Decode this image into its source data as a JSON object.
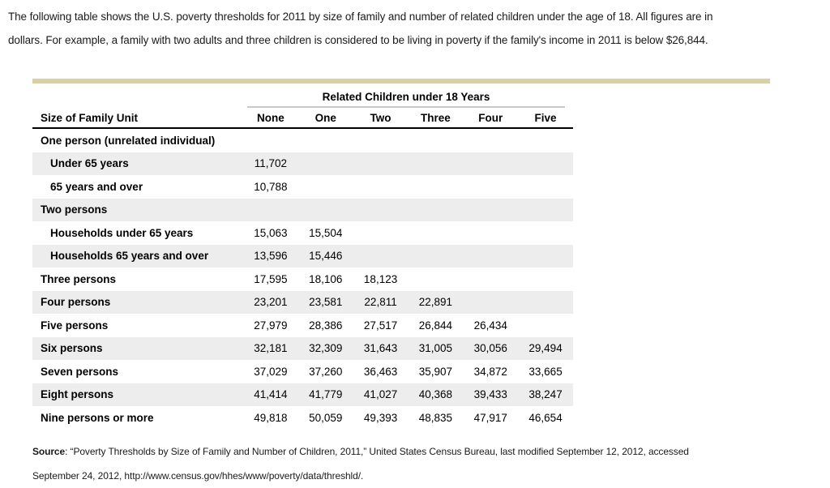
{
  "intro": {
    "line1": "The following table shows the U.S. poverty thresholds for 2011 by size of family and number of related children under the age of 18. All figures are in",
    "line2": "dollars. For example, a family with two adults and three children is considered to be living in poverty if the family's income in 2011 is below $26,844."
  },
  "table": {
    "span_header": "Related Children under 18 Years",
    "row_header": "Size of Family Unit",
    "columns": [
      "None",
      "One",
      "Two",
      "Three",
      "Four",
      "Five"
    ],
    "rows": [
      {
        "label": "One person (unrelated individual)",
        "indent": false,
        "values": [
          "",
          "",
          "",
          "",
          "",
          ""
        ]
      },
      {
        "label": "Under 65 years",
        "indent": true,
        "values": [
          "11,702",
          "",
          "",
          "",
          "",
          ""
        ]
      },
      {
        "label": "65 years and over",
        "indent": true,
        "values": [
          "10,788",
          "",
          "",
          "",
          "",
          ""
        ]
      },
      {
        "label": "Two persons",
        "indent": false,
        "values": [
          "",
          "",
          "",
          "",
          "",
          ""
        ]
      },
      {
        "label": "Households under 65 years",
        "indent": true,
        "values": [
          "15,063",
          "15,504",
          "",
          "",
          "",
          ""
        ]
      },
      {
        "label": "Households 65 years and over",
        "indent": true,
        "values": [
          "13,596",
          "15,446",
          "",
          "",
          "",
          ""
        ]
      },
      {
        "label": "Three persons",
        "indent": false,
        "values": [
          "17,595",
          "18,106",
          "18,123",
          "",
          "",
          ""
        ]
      },
      {
        "label": "Four persons",
        "indent": false,
        "values": [
          "23,201",
          "23,581",
          "22,811",
          "22,891",
          "",
          ""
        ]
      },
      {
        "label": "Five persons",
        "indent": false,
        "values": [
          "27,979",
          "28,386",
          "27,517",
          "26,844",
          "26,434",
          ""
        ]
      },
      {
        "label": "Six persons",
        "indent": false,
        "values": [
          "32,181",
          "32,309",
          "31,643",
          "31,005",
          "30,056",
          "29,494"
        ]
      },
      {
        "label": "Seven persons",
        "indent": false,
        "values": [
          "37,029",
          "37,260",
          "36,463",
          "35,907",
          "34,872",
          "33,665"
        ]
      },
      {
        "label": "Eight persons",
        "indent": false,
        "values": [
          "41,414",
          "41,779",
          "41,027",
          "40,368",
          "39,433",
          "38,247"
        ]
      },
      {
        "label": "Nine persons or more",
        "indent": false,
        "values": [
          "49,818",
          "50,059",
          "49,393",
          "48,835",
          "47,917",
          "46,654"
        ]
      }
    ]
  },
  "source": {
    "label": "Source",
    "line1_rest": ": “Poverty Thresholds by Size of Family and Number of Children, 2011,” United States Census Bureau, last modified September 12, 2012, accessed",
    "line2": "September 24, 2012, http://www.census.gov/hhes/www/poverty/data/threshld/."
  },
  "colors": {
    "accent_bar": "#d9d0a5",
    "row_alt": "#ededed",
    "span_rule": "#c9c9c9",
    "header_rule": "#000000"
  }
}
